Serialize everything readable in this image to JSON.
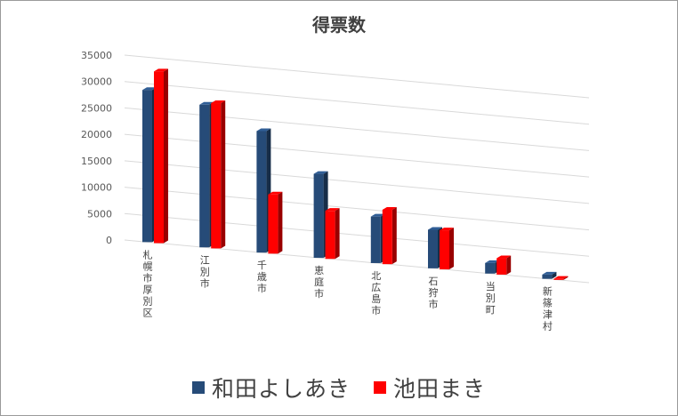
{
  "chart_data": {
    "type": "bar",
    "title": "得票数",
    "categories": [
      "札幌市厚別区",
      "江別市",
      "千歳市",
      "恵庭市",
      "北広島市",
      "石狩市",
      "当別町",
      "新篠津村"
    ],
    "series": [
      {
        "name": "和田よしあき",
        "color": "#264b78",
        "values": [
          28800,
          27000,
          23000,
          15900,
          8800,
          7300,
          2000,
          800
        ]
      },
      {
        "name": "池田まき",
        "color": "#ff0000",
        "values": [
          32500,
          27500,
          11200,
          9100,
          10300,
          7400,
          3100,
          200
        ]
      }
    ],
    "y_ticks": [
      "35000",
      "30000",
      "25000",
      "20000",
      "15000",
      "10000",
      "5000",
      "0"
    ],
    "ylim": [
      0,
      35000
    ],
    "grid": true,
    "legend": "bottom"
  }
}
